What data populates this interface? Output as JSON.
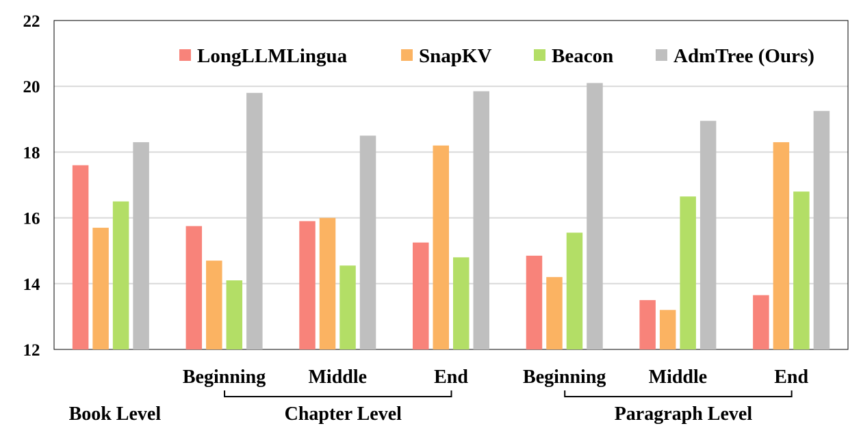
{
  "chart_data": {
    "type": "bar",
    "title": "",
    "xlabel": "",
    "ylabel": "",
    "ylim": [
      12,
      22
    ],
    "yticks": [
      12,
      14,
      16,
      18,
      20,
      22
    ],
    "grid": true,
    "legend_position": "top-right",
    "categories": [
      "",
      "Beginning",
      "Middle",
      "End",
      "Beginning",
      "Middle",
      "End"
    ],
    "groups": [
      {
        "label": "Book Level",
        "categories": [
          0
        ]
      },
      {
        "label": "Chapter Level",
        "categories": [
          1,
          2,
          3
        ]
      },
      {
        "label": "Paragraph Level",
        "categories": [
          4,
          5,
          6
        ]
      }
    ],
    "series": [
      {
        "name": "LongLLMLingua",
        "color": "#F8837A",
        "values": [
          17.6,
          15.75,
          15.9,
          15.25,
          14.85,
          13.5,
          13.65
        ]
      },
      {
        "name": "SnapKV",
        "color": "#FBB362",
        "values": [
          15.7,
          14.7,
          16.0,
          18.2,
          14.2,
          13.2,
          18.3
        ]
      },
      {
        "name": "Beacon",
        "color": "#B3DE66",
        "values": [
          16.5,
          14.1,
          14.55,
          14.8,
          15.55,
          16.65,
          16.8
        ]
      },
      {
        "name": "AdmTree (Ours)",
        "color": "#BFBFBF",
        "values": [
          18.3,
          19.8,
          18.5,
          19.85,
          20.1,
          18.95,
          19.25
        ]
      }
    ]
  }
}
